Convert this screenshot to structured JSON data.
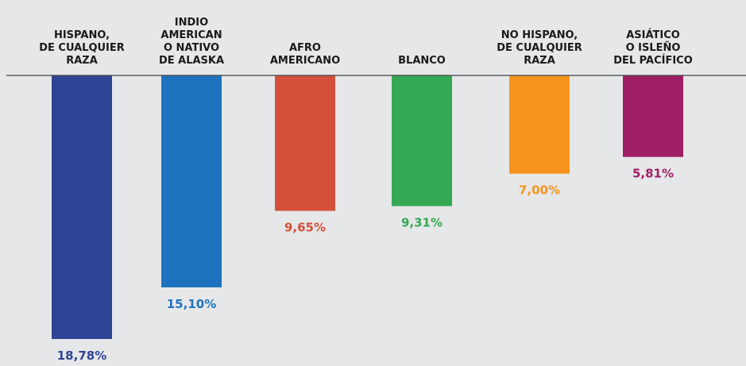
{
  "chart_data": {
    "type": "bar",
    "categories": [
      [
        "HISPANO,",
        "DE CUALQUIER",
        "RAZA"
      ],
      [
        "INDIO",
        "AMERICAN",
        "O NATIVO",
        "DE ALASKA"
      ],
      [
        "AFRO",
        "AMERICANO"
      ],
      [
        "BLANCO"
      ],
      [
        "NO HISPANO,",
        "DE CUALQUIER",
        "RAZA"
      ],
      [
        "ASIÁTICO",
        "O ISLEÑO",
        "DEL PACÍFICO"
      ]
    ],
    "values": [
      18.78,
      15.1,
      9.65,
      9.31,
      7.0,
      5.81
    ],
    "value_labels": [
      "18,78%",
      "15,10%",
      "9,65%",
      "9,31%",
      "7,00%",
      "5,81%"
    ],
    "colors": [
      "#2e4494",
      "#1e73be",
      "#d4503a",
      "#34a853",
      "#f7941d",
      "#9e1f63"
    ]
  }
}
